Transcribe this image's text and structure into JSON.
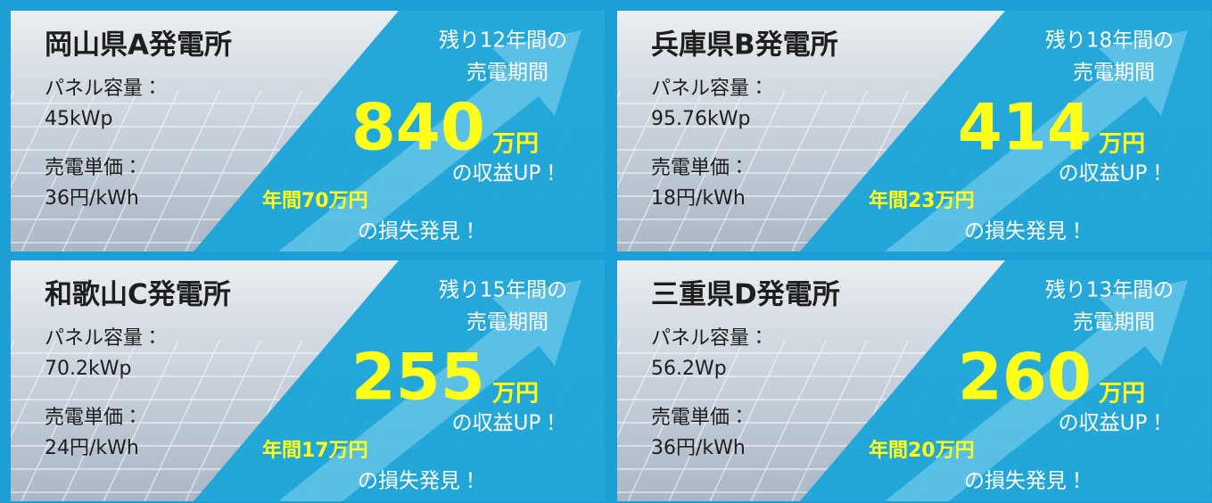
{
  "cards": [
    {
      "title": "岡山県A発電所",
      "panel_label": "パネル容量：",
      "panel_value": "45kWp",
      "price_label": "売電単価：",
      "price_value": "36円/kWh",
      "remaining_line1": "残り12年間の",
      "remaining_line2": "売電期間",
      "gain_amount": "840",
      "gain_unit": "万円",
      "gain_text": "の収益UP！",
      "loss_amount": "年間70万円",
      "loss_text": "の損失発見！"
    },
    {
      "title": "兵庫県B発電所",
      "panel_label": "パネル容量：",
      "panel_value": "95.76kWp",
      "price_label": "売電単価：",
      "price_value": "18円/kWh",
      "remaining_line1": "残り18年間の",
      "remaining_line2": "売電期間",
      "gain_amount": "414",
      "gain_unit": "万円",
      "gain_text": "の収益UP！",
      "loss_amount": "年間23万円",
      "loss_text": "の損失発見！"
    },
    {
      "title": "和歌山C発電所",
      "panel_label": "パネル容量：",
      "panel_value": "70.2kWp",
      "price_label": "売電単価：",
      "price_value": "24円/kWh",
      "remaining_line1": "残り15年間の",
      "remaining_line2": "売電期間",
      "gain_amount": "255",
      "gain_unit": "万円",
      "gain_text": "の収益UP！",
      "loss_amount": "年間17万円",
      "loss_text": "の損失発見！"
    },
    {
      "title": "三重県D発電所",
      "panel_label": "パネル容量：",
      "panel_value": "56.2Wp",
      "price_label": "売電単価：",
      "price_value": "36円/kWh",
      "remaining_line1": "残り13年間の",
      "remaining_line2": "売電期間",
      "gain_amount": "260",
      "gain_unit": "万円",
      "gain_text": "の収益UP！",
      "loss_amount": "年間20万円",
      "loss_text": "の損失発見！"
    }
  ]
}
